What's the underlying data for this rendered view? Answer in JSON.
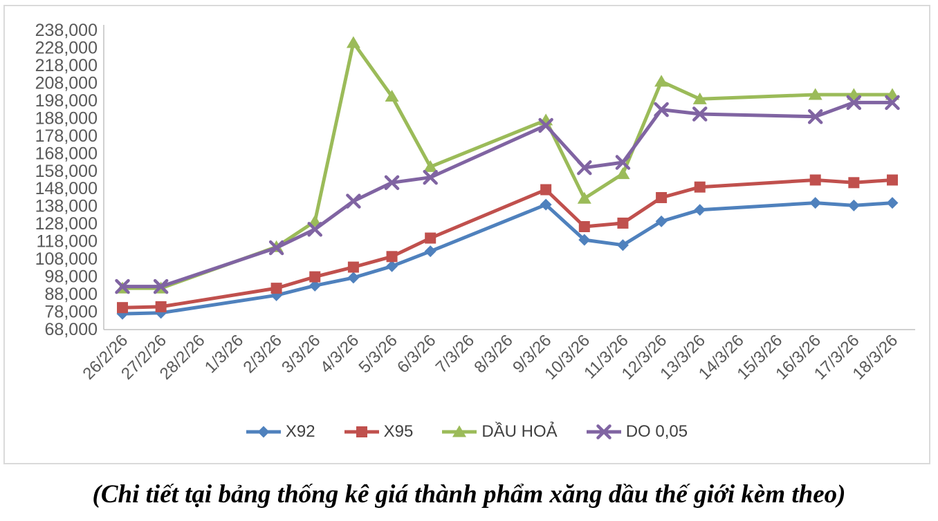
{
  "chart_data": {
    "type": "line",
    "title": "",
    "xlabel": "",
    "ylabel": "",
    "categories": [
      "26/2/26",
      "27/2/26",
      "28/2/26",
      "1/3/26",
      "2/3/26",
      "3/3/26",
      "4/3/26",
      "5/3/26",
      "6/3/26",
      "7/3/26",
      "8/3/26",
      "9/3/26",
      "10/3/26",
      "11/3/26",
      "12/3/26",
      "13/3/26",
      "14/3/26",
      "15/3/26",
      "16/3/26",
      "17/3/26",
      "18/3/26"
    ],
    "series": [
      {
        "name": "X92",
        "color": "#4F81BD",
        "marker": "diamond",
        "values": [
          77000,
          77500,
          null,
          null,
          87500,
          93000,
          97500,
          104000,
          112500,
          null,
          null,
          139000,
          119000,
          116000,
          129500,
          136000,
          null,
          null,
          140000,
          138500,
          140000
        ]
      },
      {
        "name": "X95",
        "color": "#C0504D",
        "marker": "square",
        "values": [
          80500,
          81000,
          null,
          null,
          91500,
          98000,
          103500,
          109500,
          120000,
          null,
          null,
          147500,
          126500,
          128500,
          143000,
          149000,
          null,
          null,
          153000,
          151500,
          153000
        ]
      },
      {
        "name": "DẦU HOẢ",
        "color": "#9BBB59",
        "marker": "triangle",
        "values": [
          91500,
          91500,
          null,
          null,
          115000,
          129500,
          231000,
          200500,
          160500,
          null,
          null,
          187000,
          142500,
          156500,
          209000,
          199000,
          null,
          null,
          201500,
          201500,
          201500
        ]
      },
      {
        "name": "DO 0,05",
        "color": "#8064A2",
        "marker": "x",
        "values": [
          92500,
          92500,
          null,
          null,
          114500,
          125000,
          141000,
          151500,
          154500,
          null,
          null,
          184000,
          160000,
          163000,
          193000,
          190500,
          null,
          null,
          189000,
          197000,
          197000
        ]
      }
    ],
    "ylim": [
      68000,
      238000
    ],
    "ytick_step": 10000,
    "y_ticks": [
      "238,000",
      "228,000",
      "218,000",
      "208,000",
      "198,000",
      "188,000",
      "178,000",
      "168,000",
      "158,000",
      "148,000",
      "138,000",
      "128,000",
      "118,000",
      "108,000",
      "98,000",
      "88,000",
      "78,000",
      "68,000"
    ],
    "grid": "off",
    "legend_position": "bottom",
    "colors": {
      "axis_line": "#C0C0C0",
      "frame_border": "#DADADA",
      "tick_label": "#595959",
      "legend_label": "#404040",
      "background": "#FFFFFF"
    }
  },
  "caption": {
    "text": "(Chi tiết tại bảng thống kê giá thành phẩm xăng dầu thế giới kèm theo)"
  }
}
